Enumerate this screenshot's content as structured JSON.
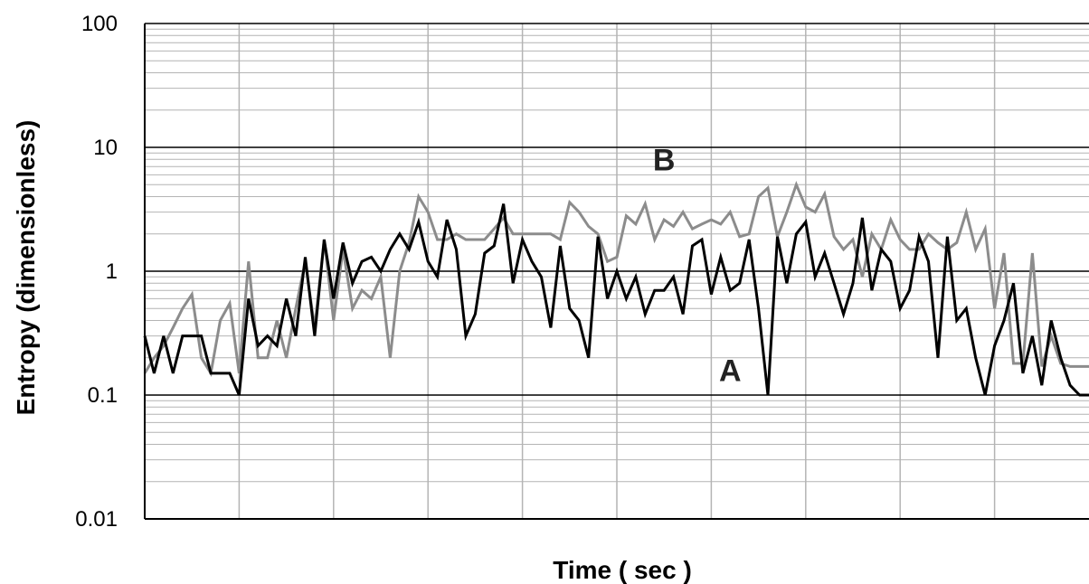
{
  "chart_data": {
    "type": "line",
    "title": "",
    "xlabel": "Time ( sec )",
    "ylabel": "Entropy (dimensionless)",
    "yscale": "log",
    "ylim": [
      0.01,
      100
    ],
    "xlim": [
      0,
      100
    ],
    "ytick_labels": [
      "0.01",
      "0.1",
      "1",
      "10",
      "100"
    ],
    "ytick_values": [
      0.01,
      0.1,
      1,
      10,
      100
    ],
    "xtick_values": [
      10,
      20,
      30,
      40,
      50,
      60,
      70,
      80,
      90
    ],
    "xtick_labels": [],
    "grid": true,
    "series": [
      {
        "name": "A",
        "color": "#000000",
        "x": [
          0,
          1,
          2,
          3,
          4,
          5,
          6,
          7,
          8,
          9,
          10,
          11,
          12,
          13,
          14,
          15,
          16,
          17,
          18,
          19,
          20,
          21,
          22,
          23,
          24,
          25,
          26,
          27,
          28,
          29,
          30,
          31,
          32,
          33,
          34,
          35,
          36,
          37,
          38,
          39,
          40,
          41,
          42,
          43,
          44,
          45,
          46,
          47,
          48,
          49,
          50,
          51,
          52,
          53,
          54,
          55,
          56,
          57,
          58,
          59,
          60,
          61,
          62,
          63,
          64,
          65,
          66,
          67,
          68,
          69,
          70,
          71,
          72,
          73,
          74,
          75,
          76,
          77,
          78,
          79,
          80,
          81,
          82,
          83,
          84,
          85,
          86,
          87,
          88,
          89,
          90,
          91,
          92,
          93,
          94,
          95,
          96,
          97,
          98,
          99,
          100
        ],
        "y": [
          0.3,
          0.15,
          0.3,
          0.15,
          0.3,
          0.3,
          0.3,
          0.15,
          0.15,
          0.15,
          0.1,
          0.6,
          0.25,
          0.3,
          0.25,
          0.6,
          0.3,
          1.3,
          0.3,
          1.8,
          0.6,
          1.7,
          0.8,
          1.2,
          1.3,
          1.0,
          1.5,
          2.0,
          1.5,
          2.5,
          1.2,
          0.9,
          2.6,
          1.5,
          0.3,
          0.45,
          1.4,
          1.6,
          3.5,
          0.8,
          1.8,
          1.2,
          0.9,
          0.35,
          1.6,
          0.5,
          0.4,
          0.2,
          1.9,
          0.6,
          1.0,
          0.6,
          0.9,
          0.45,
          0.7,
          0.7,
          0.9,
          0.45,
          1.6,
          1.8,
          0.65,
          1.3,
          0.7,
          0.8,
          1.8,
          0.5,
          0.1,
          1.9,
          0.8,
          2.0,
          2.5,
          0.9,
          1.4,
          0.8,
          0.45,
          0.8,
          2.7,
          0.7,
          1.5,
          1.2,
          0.5,
          0.7,
          1.9,
          1.2,
          0.2,
          1.9,
          0.4,
          0.5,
          0.2,
          0.1,
          0.25,
          0.4,
          0.8,
          0.15,
          0.3,
          0.12,
          0.4,
          0.2,
          0.12,
          0.1,
          0.1
        ]
      },
      {
        "name": "B",
        "color": "#8c8c8c",
        "x": [
          0,
          1,
          2,
          3,
          4,
          5,
          6,
          7,
          8,
          9,
          10,
          11,
          12,
          13,
          14,
          15,
          16,
          17,
          18,
          19,
          20,
          21,
          22,
          23,
          24,
          25,
          26,
          27,
          28,
          29,
          30,
          31,
          32,
          33,
          34,
          35,
          36,
          37,
          38,
          39,
          40,
          41,
          42,
          43,
          44,
          45,
          46,
          47,
          48,
          49,
          50,
          51,
          52,
          53,
          54,
          55,
          56,
          57,
          58,
          59,
          60,
          61,
          62,
          63,
          64,
          65,
          66,
          67,
          68,
          69,
          70,
          71,
          72,
          73,
          74,
          75,
          76,
          77,
          78,
          79,
          80,
          81,
          82,
          83,
          84,
          85,
          86,
          87,
          88,
          89,
          90,
          91,
          92,
          93,
          94,
          95,
          96,
          97,
          98,
          99,
          100
        ],
        "y": [
          0.15,
          0.2,
          0.25,
          0.35,
          0.5,
          0.65,
          0.2,
          0.15,
          0.4,
          0.55,
          0.15,
          1.2,
          0.2,
          0.2,
          0.4,
          0.2,
          0.5,
          1.2,
          0.35,
          1.8,
          0.4,
          1.5,
          0.5,
          0.7,
          0.6,
          0.9,
          0.2,
          1.0,
          1.7,
          4.0,
          3.0,
          1.8,
          1.8,
          2.0,
          1.8,
          1.8,
          1.8,
          2.2,
          2.7,
          2.0,
          2.0,
          2.0,
          2.0,
          2.0,
          1.8,
          3.6,
          3.0,
          2.3,
          2.0,
          1.2,
          1.3,
          2.8,
          2.4,
          3.5,
          1.8,
          2.6,
          2.3,
          3.0,
          2.2,
          2.4,
          2.6,
          2.4,
          3.0,
          1.9,
          2.0,
          4.0,
          4.7,
          1.9,
          3.0,
          5.0,
          3.3,
          3.0,
          4.2,
          1.9,
          1.5,
          1.8,
          0.9,
          2.0,
          1.5,
          2.6,
          1.8,
          1.5,
          1.5,
          2.0,
          1.7,
          1.5,
          1.7,
          3.0,
          1.5,
          2.2,
          0.5,
          1.4,
          0.18,
          0.18,
          1.4,
          0.17,
          0.3,
          0.18,
          0.17,
          0.17,
          0.17
        ]
      }
    ],
    "annotations": [
      {
        "text": "B",
        "x": 55,
        "y": 6.5
      },
      {
        "text": "A",
        "x": 62,
        "y": 0.13
      }
    ]
  }
}
